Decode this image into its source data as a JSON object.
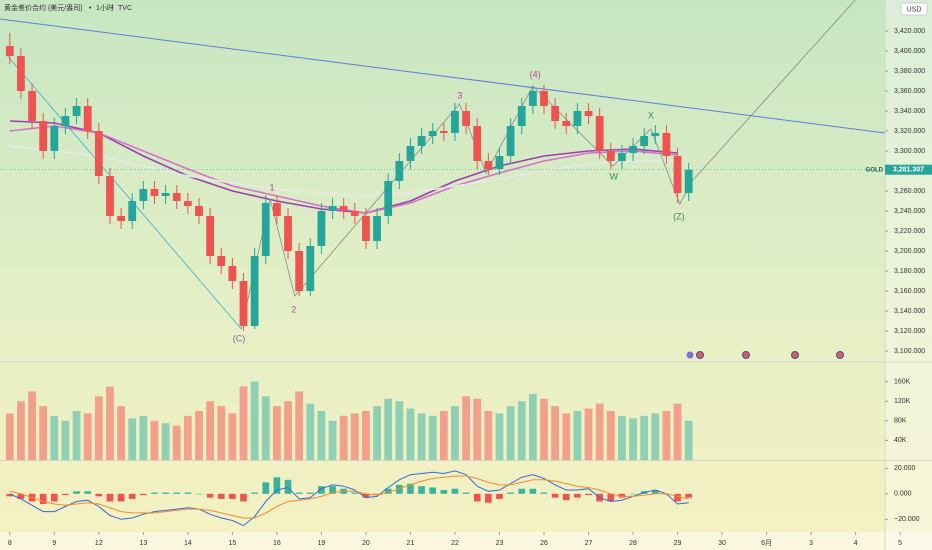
{
  "chart_data": [
    {
      "type": "candlestick",
      "title": "黄金差价合约 (美元/盎司)",
      "interval": "1小时",
      "source": "TVC",
      "currency": "USD",
      "symbol": "GOLD",
      "up_color": "#26a69a",
      "down_color": "#ef5350",
      "x": [
        0,
        0.25,
        0.5,
        0.75,
        1,
        1.25,
        1.5,
        1.75,
        2,
        2.25,
        2.5,
        2.75,
        3,
        3.25,
        3.5,
        3.75,
        4,
        4.25,
        4.5,
        4.75,
        5,
        5.25,
        5.5,
        5.75,
        6,
        6.25,
        6.5,
        6.75,
        7,
        7.25,
        7.5,
        7.75,
        8,
        8.25,
        8.5,
        8.75,
        9,
        9.25,
        9.5,
        9.75,
        10,
        10.25,
        10.5,
        10.75,
        11,
        11.25,
        11.5,
        11.75,
        12,
        12.25,
        12.5,
        12.75,
        13,
        13.25,
        13.5,
        13.75,
        14,
        14.25,
        14.5,
        14.75,
        15,
        15.25
      ],
      "open": [
        3405,
        3395,
        3360,
        3330,
        3300,
        3325,
        3335,
        3345,
        3320,
        3275,
        3235,
        3230,
        3250,
        3262,
        3255,
        3258,
        3250,
        3245,
        3235,
        3195,
        3185,
        3170,
        3125,
        3195,
        3248,
        3235,
        3200,
        3160,
        3205,
        3240,
        3245,
        3240,
        3235,
        3210,
        3235,
        3270,
        3290,
        3305,
        3315,
        3320,
        3318,
        3340,
        3325,
        3290,
        3282,
        3295,
        3325,
        3345,
        3360,
        3345,
        3330,
        3325,
        3340,
        3335,
        3300,
        3290,
        3298,
        3305,
        3315,
        3318,
        3295,
        3258
      ],
      "high": [
        3418,
        3403,
        3368,
        3338,
        3333,
        3343,
        3353,
        3353,
        3328,
        3283,
        3243,
        3258,
        3270,
        3270,
        3266,
        3266,
        3258,
        3253,
        3243,
        3203,
        3193,
        3178,
        3203,
        3256,
        3256,
        3243,
        3208,
        3213,
        3248,
        3253,
        3253,
        3248,
        3243,
        3243,
        3278,
        3298,
        3313,
        3323,
        3328,
        3328,
        3348,
        3348,
        3333,
        3298,
        3303,
        3333,
        3353,
        3365,
        3366,
        3353,
        3338,
        3348,
        3348,
        3343,
        3308,
        3306,
        3313,
        3323,
        3326,
        3326,
        3303,
        3288
      ],
      "low": [
        3387,
        3352,
        3322,
        3292,
        3292,
        3317,
        3327,
        3312,
        3267,
        3227,
        3222,
        3222,
        3242,
        3247,
        3247,
        3242,
        3237,
        3227,
        3187,
        3177,
        3162,
        3120,
        3122,
        3187,
        3227,
        3192,
        3155,
        3155,
        3197,
        3232,
        3232,
        3227,
        3202,
        3202,
        3227,
        3262,
        3282,
        3297,
        3307,
        3310,
        3310,
        3317,
        3282,
        3276,
        3276,
        3287,
        3317,
        3337,
        3337,
        3322,
        3317,
        3317,
        3327,
        3292,
        3282,
        3282,
        3290,
        3297,
        3307,
        3287,
        3248,
        3250
      ],
      "close": [
        3395,
        3360,
        3330,
        3300,
        3325,
        3335,
        3345,
        3320,
        3275,
        3235,
        3230,
        3250,
        3262,
        3255,
        3258,
        3250,
        3245,
        3235,
        3195,
        3185,
        3170,
        3125,
        3195,
        3248,
        3235,
        3200,
        3160,
        3205,
        3240,
        3245,
        3240,
        3235,
        3210,
        3235,
        3270,
        3290,
        3305,
        3315,
        3320,
        3318,
        3340,
        3325,
        3290,
        3282,
        3295,
        3325,
        3345,
        3360,
        3345,
        3330,
        3325,
        3340,
        3335,
        3300,
        3290,
        3298,
        3305,
        3315,
        3318,
        3295,
        3258,
        3281.307
      ],
      "last_price": {
        "value": 3281.307,
        "label": "3,281.307"
      },
      "xlim": [
        -0.22,
        19.66
      ],
      "xticks": [
        {
          "value": 0,
          "label": "8"
        },
        {
          "value": 1,
          "label": "9"
        },
        {
          "value": 2,
          "label": "12"
        },
        {
          "value": 3,
          "label": "13"
        },
        {
          "value": 4,
          "label": "14"
        },
        {
          "value": 5,
          "label": "15"
        },
        {
          "value": 6,
          "label": "16"
        },
        {
          "value": 7,
          "label": "19"
        },
        {
          "value": 8,
          "label": "20"
        },
        {
          "value": 9,
          "label": "21"
        },
        {
          "value": 10,
          "label": "22"
        },
        {
          "value": 11,
          "label": "23"
        },
        {
          "value": 12,
          "label": "26"
        },
        {
          "value": 13,
          "label": "27"
        },
        {
          "value": 14,
          "label": "28"
        },
        {
          "value": 15,
          "label": "29"
        },
        {
          "value": 16,
          "label": "30"
        },
        {
          "value": 17,
          "label": "6月"
        },
        {
          "value": 18,
          "label": "3"
        },
        {
          "value": 19,
          "label": "4"
        },
        {
          "value": 20,
          "label": "5"
        }
      ],
      "ylim": [
        3089,
        3451
      ],
      "yticks": [
        {
          "value": 3100,
          "label": "3,100.000"
        },
        {
          "value": 3120,
          "label": "3,120.000"
        },
        {
          "value": 3140,
          "label": "3,140.000"
        },
        {
          "value": 3160,
          "label": "3,160.000"
        },
        {
          "value": 3180,
          "label": "3,180.000"
        },
        {
          "value": 3200,
          "label": "3,200.000"
        },
        {
          "value": 3220,
          "label": "3,220.000"
        },
        {
          "value": 3240,
          "label": "3,240.000"
        },
        {
          "value": 3260,
          "label": "3,260.000"
        },
        {
          "value": 3280,
          "label": "3,280.000"
        },
        {
          "value": 3300,
          "label": "3,300.000"
        },
        {
          "value": 3320,
          "label": "3,320.000"
        },
        {
          "value": 3340,
          "label": "3,340.000"
        },
        {
          "value": 3360,
          "label": "3,360.000"
        },
        {
          "value": 3380,
          "label": "3,380.000"
        },
        {
          "value": 3400,
          "label": "3,400.000"
        },
        {
          "value": 3420,
          "label": "3,420.000"
        }
      ],
      "moving_averages": [
        {
          "color": "#9c3fb0",
          "x": [
            0,
            1,
            2,
            3,
            4,
            5,
            6,
            7,
            8,
            9,
            10,
            11,
            12,
            13,
            14,
            15
          ],
          "values": [
            3330,
            3328,
            3318,
            3295,
            3275,
            3260,
            3250,
            3242,
            3238,
            3250,
            3270,
            3285,
            3295,
            3300,
            3302,
            3298
          ]
        },
        {
          "color": "#d670c8",
          "x": [
            0,
            1,
            2,
            3,
            4,
            5,
            6,
            7,
            8,
            9,
            10,
            11,
            12,
            13,
            14,
            15
          ],
          "values": [
            3320,
            3325,
            3318,
            3300,
            3282,
            3265,
            3255,
            3245,
            3238,
            3248,
            3265,
            3278,
            3290,
            3298,
            3300,
            3296
          ]
        },
        {
          "color": "#e8e8e8",
          "x": [
            0,
            1,
            2,
            3,
            4,
            5,
            6,
            7,
            8,
            9,
            10,
            11,
            12,
            13,
            14,
            15
          ],
          "values": [
            3305,
            3300,
            3295,
            3285,
            3275,
            3268,
            3262,
            3258,
            3255,
            3258,
            3265,
            3272,
            3280,
            3287,
            3290,
            3290
          ]
        }
      ],
      "trendline": {
        "color": "#5b7fd6",
        "x": [
          -0.22,
          19.66
        ],
        "y": [
          3432,
          3318
        ]
      },
      "projection": {
        "color": "#8a8a8a",
        "x": [
          15.33,
          18.99
        ],
        "y": [
          3270,
          3451
        ]
      },
      "wave_lines": [
        {
          "color": "#36b0cf",
          "x": [
            -0.05,
            5.2
          ],
          "y": [
            3395,
            3122
          ]
        },
        {
          "color": "#8a8a8a",
          "x": [
            5.2,
            5.85,
            6.4,
            10.1,
            10.7,
            11.75,
            13.55,
            14.4,
            15.05,
            15.33
          ],
          "y": [
            3122,
            3252,
            3155,
            3347,
            3278,
            3365,
            3285,
            3322,
            3247,
            3270
          ]
        }
      ],
      "wave_labels": [
        {
          "label": "(C)",
          "x": 5.15,
          "y": 3112,
          "color": "#7b6aa0"
        },
        {
          "label": "1",
          "x": 5.89,
          "y": 3263,
          "color": "#b04a8f"
        },
        {
          "label": "2",
          "x": 6.38,
          "y": 3141,
          "color": "#b04a8f"
        },
        {
          "label": "3",
          "x": 10.11,
          "y": 3355,
          "color": "#b04a8f"
        },
        {
          "label": "(4)",
          "x": 11.8,
          "y": 3376,
          "color": "#b04a8f"
        },
        {
          "label": "X",
          "x": 14.4,
          "y": 3335,
          "color": "#3a8a5a"
        },
        {
          "label": "W",
          "x": 13.57,
          "y": 3274,
          "color": "#3a8a5a"
        },
        {
          "label": "(Z)",
          "x": 15.03,
          "y": 3234,
          "color": "#3a8a5a"
        }
      ]
    },
    {
      "type": "bar",
      "x": [
        0,
        0.25,
        0.5,
        0.75,
        1,
        1.25,
        1.5,
        1.75,
        2,
        2.25,
        2.5,
        2.75,
        3,
        3.25,
        3.5,
        3.75,
        4,
        4.25,
        4.5,
        4.75,
        5,
        5.25,
        5.5,
        5.75,
        6,
        6.25,
        6.5,
        6.75,
        7,
        7.25,
        7.5,
        7.75,
        8,
        8.25,
        8.5,
        8.75,
        9,
        9.25,
        9.5,
        9.75,
        10,
        10.25,
        10.5,
        10.75,
        11,
        11.25,
        11.5,
        11.75,
        12,
        12.25,
        12.5,
        12.75,
        13,
        13.25,
        13.5,
        13.75,
        14,
        14.25,
        14.5,
        14.75,
        15,
        15.25
      ],
      "values": [
        95000,
        120000,
        140000,
        110000,
        90000,
        80000,
        100000,
        95000,
        130000,
        150000,
        110000,
        85000,
        90000,
        80000,
        75000,
        70000,
        90000,
        100000,
        120000,
        110000,
        95000,
        150000,
        160000,
        130000,
        110000,
        120000,
        140000,
        115000,
        100000,
        80000,
        90000,
        95000,
        100000,
        110000,
        125000,
        120000,
        105000,
        95000,
        90000,
        100000,
        110000,
        130000,
        125000,
        100000,
        95000,
        110000,
        120000,
        135000,
        125000,
        110000,
        95000,
        100000,
        105000,
        115000,
        100000,
        90000,
        85000,
        90000,
        95000,
        100000,
        115000,
        80000
      ],
      "up_color": "#8fcfb4",
      "down_color": "#f2a08c",
      "ylim": [
        0,
        200000
      ],
      "yticks": [
        {
          "value": 40000,
          "label": "40K"
        },
        {
          "value": 80000,
          "label": "80K"
        },
        {
          "value": 120000,
          "label": "120K"
        },
        {
          "value": 160000,
          "label": "160K"
        }
      ]
    },
    {
      "type": "line",
      "x": [
        0,
        0.25,
        0.5,
        0.75,
        1,
        1.25,
        1.5,
        1.75,
        2,
        2.25,
        2.5,
        2.75,
        3,
        3.25,
        3.5,
        3.75,
        4,
        4.25,
        4.5,
        4.75,
        5,
        5.25,
        5.5,
        5.75,
        6,
        6.25,
        6.5,
        6.75,
        7,
        7.25,
        7.5,
        7.75,
        8,
        8.25,
        8.5,
        8.75,
        9,
        9.25,
        9.5,
        9.75,
        10,
        10.25,
        10.5,
        10.75,
        11,
        11.25,
        11.5,
        11.75,
        12,
        12.25,
        12.5,
        12.75,
        13,
        13.25,
        13.5,
        13.75,
        14,
        14.25,
        14.5,
        14.75,
        15,
        15.25
      ],
      "series": [
        {
          "color": "#2f6bd8",
          "values": [
            0,
            -4,
            -9,
            -14,
            -14,
            -10,
            -6,
            -5,
            -10,
            -17,
            -20,
            -19,
            -16,
            -14,
            -13,
            -12,
            -11,
            -12,
            -16,
            -19,
            -21,
            -25,
            -18,
            -6,
            3,
            5,
            -4,
            -3,
            4,
            7,
            6,
            3,
            -3,
            -2,
            5,
            11,
            15,
            16,
            17,
            16,
            18,
            15,
            6,
            2,
            3,
            8,
            13,
            15,
            12,
            7,
            3,
            3,
            4,
            -3,
            -6,
            -5,
            -2,
            1,
            3,
            0,
            -8,
            -7
          ]
        },
        {
          "color": "#f08c2e",
          "values": [
            2,
            0,
            -3,
            -6,
            -8,
            -9,
            -8,
            -7,
            -8,
            -11,
            -14,
            -15,
            -15,
            -15,
            -14,
            -13,
            -12,
            -12,
            -13,
            -15,
            -17,
            -19,
            -19,
            -15,
            -10,
            -6,
            -5,
            -4,
            -2,
            1,
            2,
            2,
            0,
            -1,
            1,
            4,
            7,
            10,
            12,
            13,
            14,
            14,
            12,
            9,
            7,
            7,
            9,
            11,
            11,
            10,
            8,
            6,
            5,
            3,
            0,
            -2,
            -2,
            -1,
            0,
            0,
            -2,
            -4
          ]
        }
      ],
      "histogram": {
        "up_color": "#3bb39c",
        "down_color": "#ef5350",
        "values": [
          -2,
          -4,
          -6,
          -8,
          -6,
          -1,
          2,
          2,
          -2,
          -6,
          -6,
          -4,
          -1,
          1,
          1,
          1,
          1,
          0,
          -3,
          -4,
          -4,
          -6,
          1,
          9,
          13,
          11,
          1,
          1,
          6,
          6,
          4,
          1,
          -3,
          -1,
          4,
          7,
          8,
          6,
          5,
          3,
          4,
          1,
          -6,
          -7,
          -4,
          1,
          4,
          4,
          1,
          -3,
          -5,
          -3,
          -1,
          -6,
          -6,
          -3,
          0,
          2,
          3,
          0,
          -6,
          -3
        ]
      },
      "ylim": [
        -30,
        25
      ],
      "yticks": [
        {
          "value": -20,
          "label": "−20.000"
        },
        {
          "value": 0,
          "label": "0.000"
        },
        {
          "value": 20,
          "label": "20.000"
        }
      ]
    }
  ]
}
